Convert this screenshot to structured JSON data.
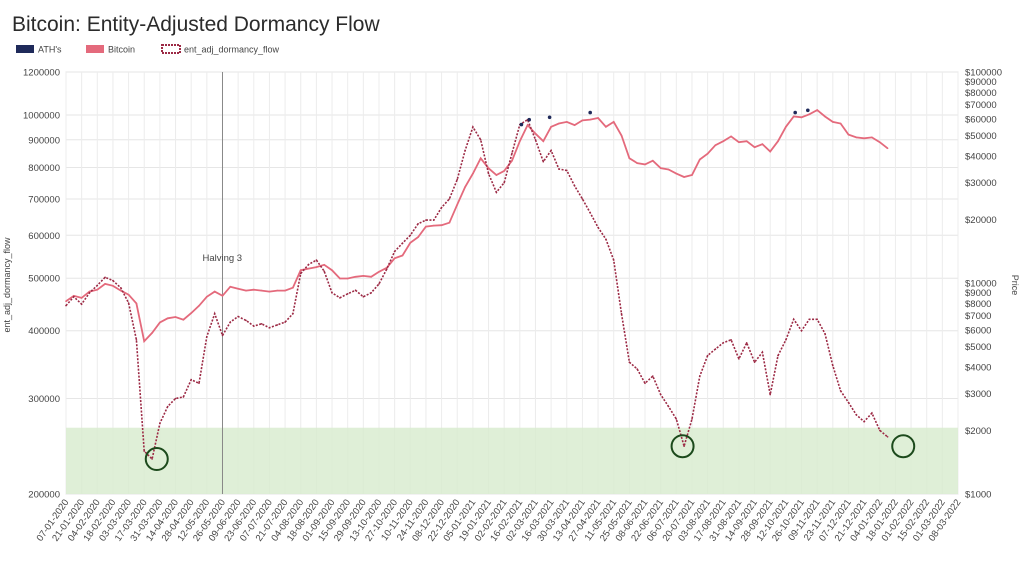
{
  "chart_data": {
    "type": "line",
    "title": "Bitcoin: Entity-Adjusted Dormancy Flow",
    "ylabel": "ent_adj_dormancy_flow",
    "y2label": "Price",
    "legend": {
      "placement": "top-left",
      "items": [
        {
          "label": "ATH's",
          "color": "#1f2a5a"
        },
        {
          "label": "Bitcoin",
          "color": "#e46a7c"
        },
        {
          "label": "ent_adj_dormancy_flow",
          "color": "#9c2a45"
        }
      ]
    },
    "y_left": {
      "scale": "log",
      "ylim": [
        200000,
        1200000
      ],
      "ticks": [
        {
          "v": 1200000,
          "label": "1200000"
        },
        {
          "v": 1000000,
          "label": "1000000"
        },
        {
          "v": 900000,
          "label": "900000"
        },
        {
          "v": 800000,
          "label": "800000"
        },
        {
          "v": 700000,
          "label": "700000"
        },
        {
          "v": 600000,
          "label": "600000"
        },
        {
          "v": 500000,
          "label": "500000"
        },
        {
          "v": 400000,
          "label": "400000"
        },
        {
          "v": 300000,
          "label": "300000"
        },
        {
          "v": 200000,
          "label": "200000"
        }
      ]
    },
    "y_right": {
      "scale": "log",
      "ylim": [
        1000,
        100000
      ],
      "ticks": [
        {
          "v": 100000,
          "label": "$100000"
        },
        {
          "v": 90000,
          "label": "$90000"
        },
        {
          "v": 80000,
          "label": "$80000"
        },
        {
          "v": 70000,
          "label": "$70000"
        },
        {
          "v": 60000,
          "label": "$60000"
        },
        {
          "v": 50000,
          "label": "$50000"
        },
        {
          "v": 40000,
          "label": "$40000"
        },
        {
          "v": 30000,
          "label": "$30000"
        },
        {
          "v": 20000,
          "label": "$20000"
        },
        {
          "v": 10000,
          "label": "$10000"
        },
        {
          "v": 9000,
          "label": "$9000"
        },
        {
          "v": 8000,
          "label": "$8000"
        },
        {
          "v": 7000,
          "label": "$7000"
        },
        {
          "v": 6000,
          "label": "$6000"
        },
        {
          "v": 5000,
          "label": "$5000"
        },
        {
          "v": 4000,
          "label": "$4000"
        },
        {
          "v": 3000,
          "label": "$3000"
        },
        {
          "v": 2000,
          "label": "$2000"
        },
        {
          "v": 1000,
          "label": "$1000"
        }
      ]
    },
    "x_ticks": [
      "07-01-2020",
      "21-01-2020",
      "04-02-2020",
      "18-02-2020",
      "03-03-2020",
      "17-03-2020",
      "31-03-2020",
      "14-04-2020",
      "28-04-2020",
      "12-05-2020",
      "26-05-2020",
      "09-06-2020",
      "23-06-2020",
      "07-07-2020",
      "21-07-2020",
      "04-08-2020",
      "18-08-2020",
      "01-09-2020",
      "15-09-2020",
      "29-09-2020",
      "13-10-2020",
      "27-10-2020",
      "10-11-2020",
      "24-11-2020",
      "08-12-2020",
      "22-12-2020",
      "05-01-2021",
      "19-01-2021",
      "02-02-2021",
      "16-02-2021",
      "02-03-2021",
      "16-03-2021",
      "30-03-2021",
      "13-04-2021",
      "27-04-2021",
      "11-05-2021",
      "25-05-2021",
      "08-06-2021",
      "22-06-2021",
      "06-07-2021",
      "20-07-2021",
      "03-08-2021",
      "17-08-2021",
      "31-08-2021",
      "14-09-2021",
      "28-09-2021",
      "12-10-2021",
      "26-10-2021",
      "09-11-2021",
      "23-11-2021",
      "07-12-2021",
      "21-12-2021",
      "04-01-2022",
      "18-01-2022",
      "01-02-2022",
      "15-02-2022",
      "01-03-2022",
      "08-03-2022"
    ],
    "annotations": [
      {
        "text": "Halving 3",
        "at_tick": 10
      }
    ],
    "shaded_band": {
      "from": 200000,
      "to": 265000,
      "color": "#d9ecd0"
    },
    "highlight_circles": [
      {
        "tick_pos": 5.8,
        "value": 232000
      },
      {
        "tick_pos": 39.4,
        "value": 245000
      },
      {
        "tick_pos": 53.5,
        "value": 245000
      }
    ],
    "series": [
      {
        "name": "Bitcoin",
        "axis": "right",
        "color": "#e46a7c",
        "points": [
          [
            0,
            8200
          ],
          [
            0.5,
            8700
          ],
          [
            1,
            8500
          ],
          [
            1.5,
            9100
          ],
          [
            2,
            9300
          ],
          [
            2.5,
            9900
          ],
          [
            3,
            9700
          ],
          [
            3.5,
            9200
          ],
          [
            4,
            8800
          ],
          [
            4.5,
            8000
          ],
          [
            5,
            5300
          ],
          [
            5.5,
            5800
          ],
          [
            6,
            6500
          ],
          [
            6.5,
            6800
          ],
          [
            7,
            6900
          ],
          [
            7.5,
            6700
          ],
          [
            8,
            7200
          ],
          [
            8.5,
            7800
          ],
          [
            9,
            8600
          ],
          [
            9.5,
            9100
          ],
          [
            10,
            8700
          ],
          [
            10.5,
            9600
          ],
          [
            11,
            9400
          ],
          [
            11.5,
            9200
          ],
          [
            12,
            9300
          ],
          [
            12.5,
            9200
          ],
          [
            13,
            9100
          ],
          [
            13.5,
            9200
          ],
          [
            14,
            9200
          ],
          [
            14.5,
            9500
          ],
          [
            15,
            11500
          ],
          [
            15.5,
            11700
          ],
          [
            16,
            11900
          ],
          [
            16.5,
            12200
          ],
          [
            17,
            11500
          ],
          [
            17.5,
            10500
          ],
          [
            18,
            10500
          ],
          [
            18.5,
            10700
          ],
          [
            19,
            10800
          ],
          [
            19.5,
            10700
          ],
          [
            20,
            11300
          ],
          [
            20.5,
            11800
          ],
          [
            21,
            13100
          ],
          [
            21.5,
            13500
          ],
          [
            22,
            15500
          ],
          [
            22.5,
            16500
          ],
          [
            23,
            18500
          ],
          [
            23.5,
            18700
          ],
          [
            24,
            18800
          ],
          [
            24.5,
            19300
          ],
          [
            25,
            23500
          ],
          [
            25.5,
            28500
          ],
          [
            26,
            33000
          ],
          [
            26.5,
            39000
          ],
          [
            27,
            35000
          ],
          [
            27.5,
            32500
          ],
          [
            28,
            34000
          ],
          [
            28.5,
            38000
          ],
          [
            29,
            47000
          ],
          [
            29.5,
            56000
          ],
          [
            30,
            51000
          ],
          [
            30.5,
            47000
          ],
          [
            31,
            55000
          ],
          [
            31.5,
            57000
          ],
          [
            32,
            58000
          ],
          [
            32.5,
            56000
          ],
          [
            33,
            59000
          ],
          [
            33.5,
            59500
          ],
          [
            34,
            60500
          ],
          [
            34.5,
            55000
          ],
          [
            35,
            58000
          ],
          [
            35.5,
            50000
          ],
          [
            36,
            39000
          ],
          [
            36.5,
            37000
          ],
          [
            37,
            36500
          ],
          [
            37.5,
            38000
          ],
          [
            38,
            35000
          ],
          [
            38.5,
            34500
          ],
          [
            39,
            33000
          ],
          [
            39.5,
            31800
          ],
          [
            40,
            32500
          ],
          [
            40.5,
            38500
          ],
          [
            41,
            41000
          ],
          [
            41.5,
            45000
          ],
          [
            42,
            47000
          ],
          [
            42.5,
            49500
          ],
          [
            43,
            46500
          ],
          [
            43.5,
            47000
          ],
          [
            44,
            44000
          ],
          [
            44.5,
            45500
          ],
          [
            45,
            42000
          ],
          [
            45.5,
            47000
          ],
          [
            46,
            55000
          ],
          [
            46.5,
            61500
          ],
          [
            47,
            61000
          ],
          [
            47.5,
            63000
          ],
          [
            48,
            66000
          ],
          [
            48.5,
            61500
          ],
          [
            49,
            58000
          ],
          [
            49.5,
            57000
          ],
          [
            50,
            50500
          ],
          [
            50.5,
            49000
          ],
          [
            51,
            48500
          ],
          [
            51.5,
            49000
          ],
          [
            52,
            46500
          ],
          [
            52.5,
            43500
          ]
        ]
      },
      {
        "name": "ent_adj_dormancy_flow",
        "axis": "left",
        "color": "#9c2a45",
        "points": [
          [
            0,
            445000
          ],
          [
            0.5,
            462000
          ],
          [
            1,
            448000
          ],
          [
            1.5,
            470000
          ],
          [
            2,
            485000
          ],
          [
            2.5,
            502000
          ],
          [
            3,
            495000
          ],
          [
            3.5,
            480000
          ],
          [
            4,
            450000
          ],
          [
            4.5,
            385000
          ],
          [
            5,
            240000
          ],
          [
            5.5,
            232000
          ],
          [
            6,
            270000
          ],
          [
            6.5,
            290000
          ],
          [
            7,
            300000
          ],
          [
            7.5,
            302000
          ],
          [
            8,
            325000
          ],
          [
            8.5,
            320000
          ],
          [
            9,
            390000
          ],
          [
            9.5,
            430000
          ],
          [
            10,
            392000
          ],
          [
            10.5,
            415000
          ],
          [
            11,
            425000
          ],
          [
            11.5,
            418000
          ],
          [
            12,
            408000
          ],
          [
            12.5,
            412000
          ],
          [
            13,
            405000
          ],
          [
            13.5,
            410000
          ],
          [
            14,
            415000
          ],
          [
            14.5,
            430000
          ],
          [
            15,
            510000
          ],
          [
            15.5,
            530000
          ],
          [
            16,
            540000
          ],
          [
            16.5,
            515000
          ],
          [
            17,
            470000
          ],
          [
            17.5,
            460000
          ],
          [
            18,
            468000
          ],
          [
            18.5,
            475000
          ],
          [
            19,
            462000
          ],
          [
            19.5,
            470000
          ],
          [
            20,
            488000
          ],
          [
            20.5,
            520000
          ],
          [
            21,
            560000
          ],
          [
            21.5,
            580000
          ],
          [
            22,
            600000
          ],
          [
            22.5,
            630000
          ],
          [
            23,
            640000
          ],
          [
            23.5,
            640000
          ],
          [
            24,
            675000
          ],
          [
            24.5,
            700000
          ],
          [
            25,
            760000
          ],
          [
            25.5,
            860000
          ],
          [
            26,
            950000
          ],
          [
            26.5,
            900000
          ],
          [
            27,
            780000
          ],
          [
            27.5,
            720000
          ],
          [
            28,
            750000
          ],
          [
            28.5,
            850000
          ],
          [
            29,
            960000
          ],
          [
            29.5,
            980000
          ],
          [
            30,
            900000
          ],
          [
            30.5,
            820000
          ],
          [
            31,
            860000
          ],
          [
            31.5,
            795000
          ],
          [
            32,
            790000
          ],
          [
            32.5,
            740000
          ],
          [
            33,
            700000
          ],
          [
            33.5,
            660000
          ],
          [
            34,
            620000
          ],
          [
            34.5,
            590000
          ],
          [
            35,
            540000
          ],
          [
            35.5,
            430000
          ],
          [
            36,
            350000
          ],
          [
            36.5,
            340000
          ],
          [
            37,
            320000
          ],
          [
            37.5,
            330000
          ],
          [
            38,
            305000
          ],
          [
            38.5,
            290000
          ],
          [
            39,
            275000
          ],
          [
            39.5,
            245000
          ],
          [
            40,
            275000
          ],
          [
            40.5,
            330000
          ],
          [
            41,
            360000
          ],
          [
            41.5,
            370000
          ],
          [
            42,
            380000
          ],
          [
            42.5,
            385000
          ],
          [
            43,
            355000
          ],
          [
            43.5,
            380000
          ],
          [
            44,
            350000
          ],
          [
            44.5,
            365000
          ],
          [
            45,
            305000
          ],
          [
            45.5,
            360000
          ],
          [
            46,
            385000
          ],
          [
            46.5,
            420000
          ],
          [
            47,
            400000
          ],
          [
            47.5,
            420000
          ],
          [
            48,
            420000
          ],
          [
            48.5,
            395000
          ],
          [
            49,
            345000
          ],
          [
            49.5,
            310000
          ],
          [
            50,
            295000
          ],
          [
            50.5,
            280000
          ],
          [
            51,
            272000
          ],
          [
            51.5,
            282000
          ],
          [
            52,
            262000
          ],
          [
            52.5,
            255000
          ]
        ]
      }
    ],
    "ath_points": [
      [
        29.1,
        960000
      ],
      [
        29.6,
        980000
      ],
      [
        30.9,
        990000
      ],
      [
        33.5,
        1010000
      ],
      [
        46.6,
        1010000
      ],
      [
        47.4,
        1020000
      ]
    ]
  }
}
